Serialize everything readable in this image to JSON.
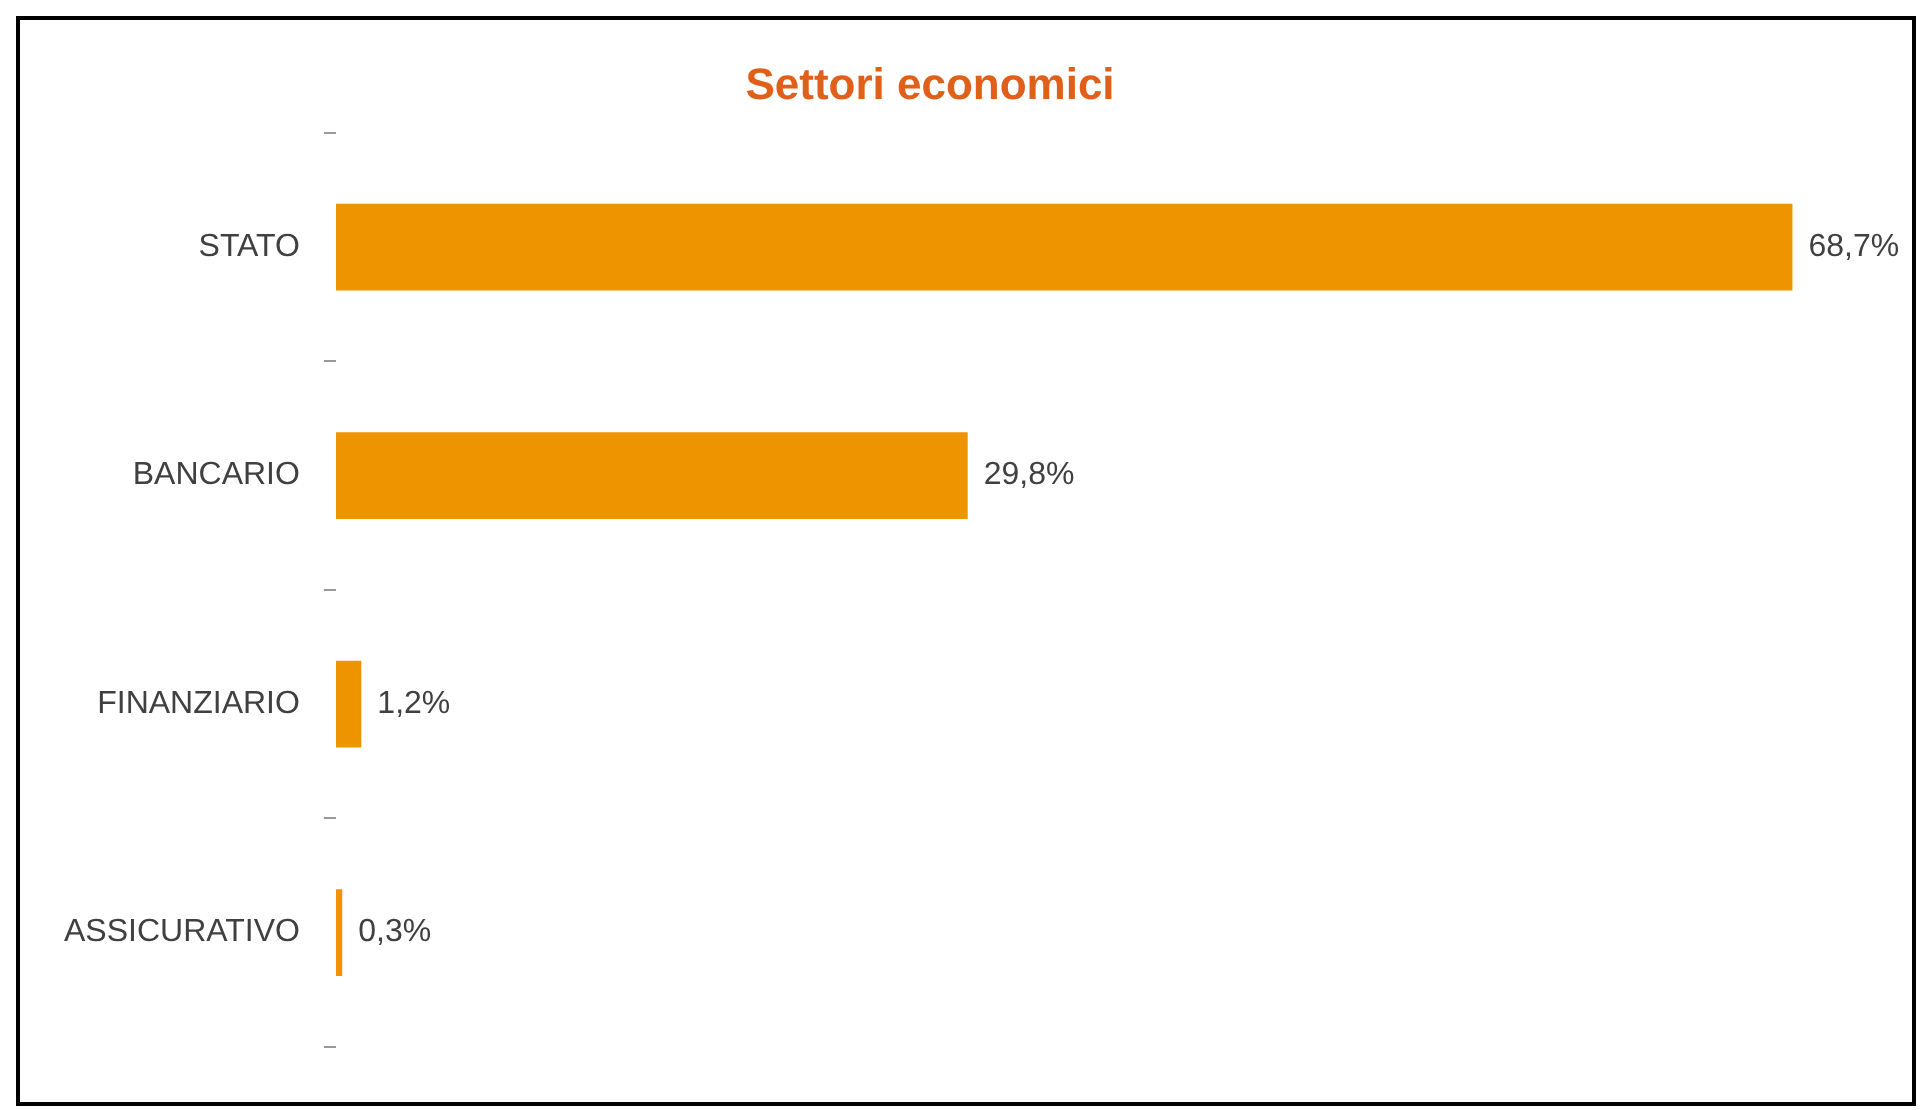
{
  "chart_data": {
    "type": "bar",
    "orientation": "horizontal",
    "title": "Settori economici",
    "categories": [
      "STATO",
      "BANCARIO",
      "FINANZIARIO",
      "ASSICURATIVO"
    ],
    "values": [
      68.7,
      29.8,
      1.2,
      0.3
    ],
    "value_labels": [
      "68,7%",
      "29,8%",
      "1,2%",
      "0,3%"
    ],
    "color": "#ee9400",
    "legend": false
  }
}
